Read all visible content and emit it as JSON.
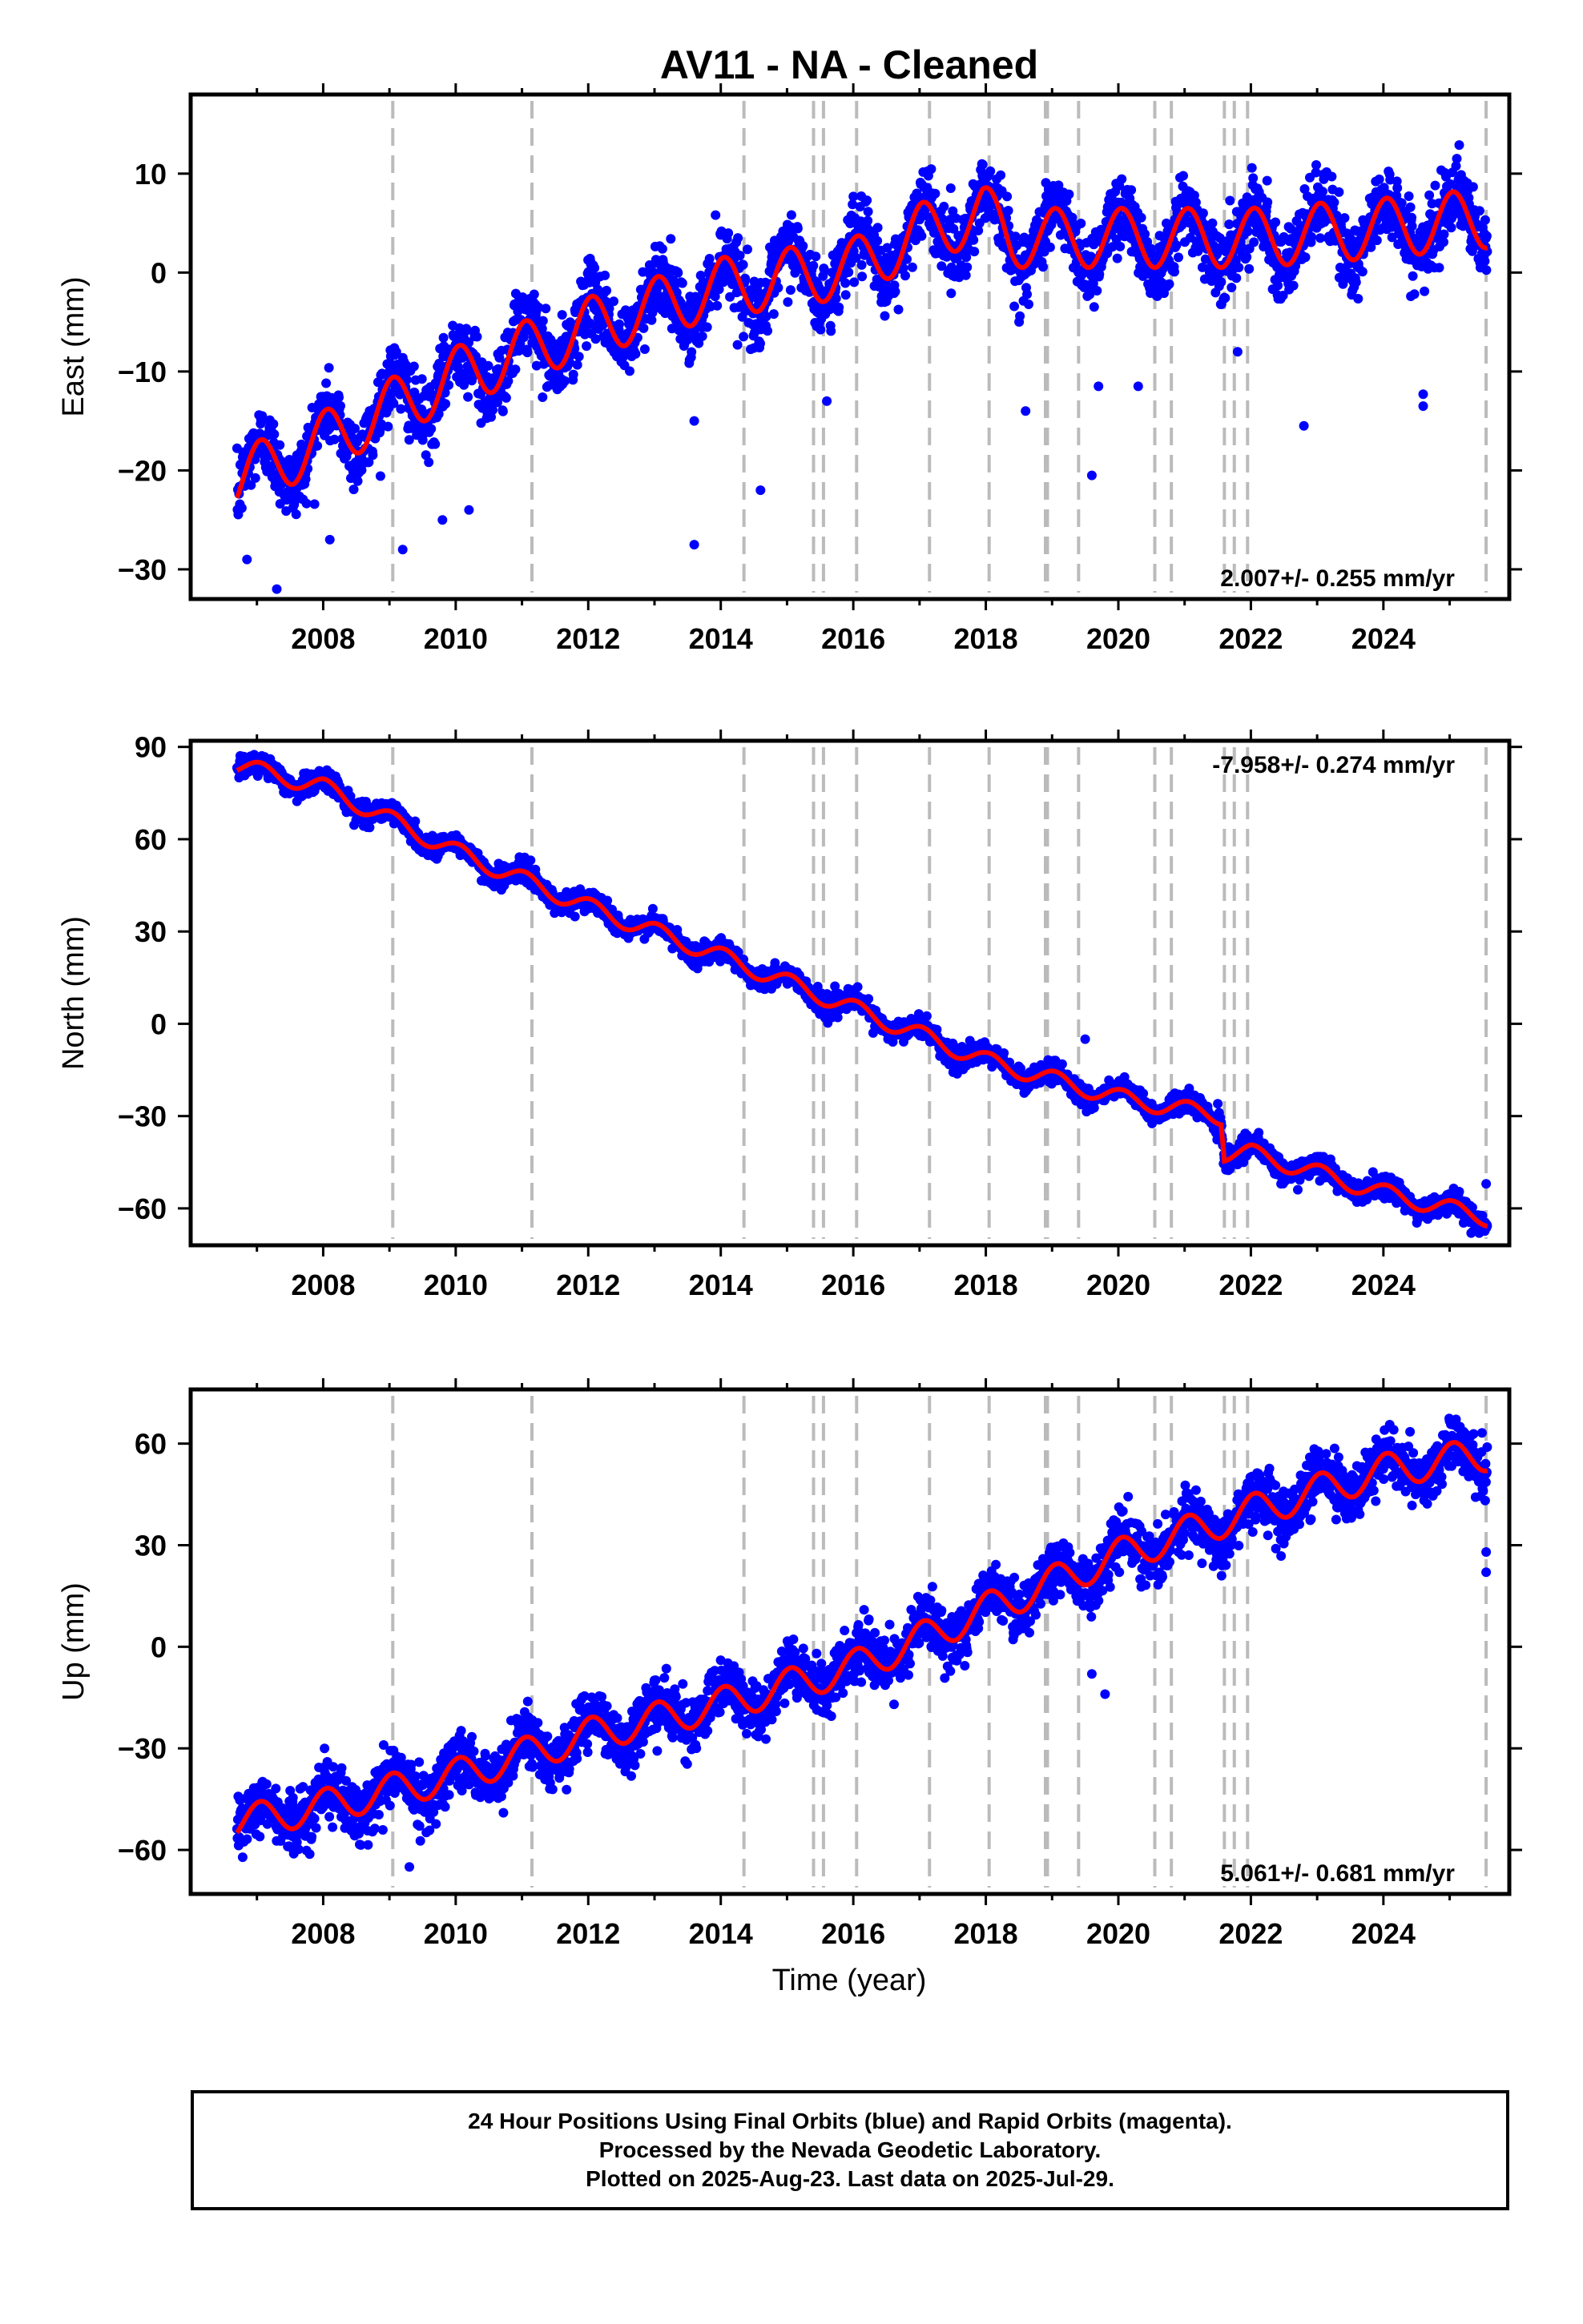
{
  "title": "AV11  - NA - Cleaned",
  "colors": {
    "data": "#0000ff",
    "model": "#ff0000",
    "breaks": "#bbbbbb",
    "frame": "#000000"
  },
  "x_axis_label": "Time (year)",
  "footer": {
    "line1": "24 Hour Positions Using Final Orbits (blue) and Rapid Orbits (magenta).",
    "line2": "Processed by the Nevada Geodetic Laboratory.",
    "line3": "Plotted on 2025-Aug-23. Last data on 2025-Jul-29."
  },
  "chart_data": [
    {
      "type": "scatter",
      "component": "east",
      "ylabel": "East (mm)",
      "rate_label": "2.007+/- 0.255 mm/yr",
      "rate_position": "bottom-right",
      "xlim": [
        2006.0,
        2025.9
      ],
      "ylim": [
        -33,
        18
      ],
      "x_ticks": [
        2008,
        2010,
        2012,
        2014,
        2016,
        2018,
        2020,
        2022,
        2024
      ],
      "y_ticks": [
        -30,
        -20,
        -10,
        0,
        10
      ],
      "data_start": 2006.7,
      "data_end": 2025.57,
      "model_knots": {
        "x": [
          2006.7,
          2008.0,
          2010.0,
          2012.0,
          2014.0,
          2016.0,
          2017.0,
          2017.95,
          2018.4,
          2020.0,
          2022.0,
          2024.0,
          2025.57
        ],
        "y": [
          -21,
          -17,
          -10.5,
          -5.5,
          -1.5,
          0.5,
          4.0,
          6.0,
          3.5,
          3.5,
          3.5,
          4.5,
          5.5
        ]
      },
      "seasonal_amplitude": 3.0,
      "scatter_sd": 1.8,
      "outliers": {
        "x": [
          2006.85,
          2007.3,
          2009.2,
          2009.8,
          2013.6,
          2013.6,
          2014.6,
          2015.6,
          2018.6,
          2019.6,
          2019.7,
          2020.3,
          2022.8,
          2024.6,
          2024.6,
          2021.8,
          2008.1,
          2010.2
        ],
        "y": [
          -29,
          -32,
          -28,
          -25,
          -27.5,
          -15,
          -22,
          -13,
          -14,
          -20.5,
          -11.5,
          -11.5,
          -15.5,
          -12.3,
          -13.5,
          -8,
          -27,
          -24
        ]
      }
    },
    {
      "type": "scatter",
      "component": "north",
      "ylabel": "North (mm)",
      "rate_label": "-7.958+/- 0.274 mm/yr",
      "rate_position": "top-right",
      "xlim": [
        2006.0,
        2025.9
      ],
      "ylim": [
        -72,
        92
      ],
      "x_ticks": [
        2008,
        2010,
        2012,
        2014,
        2016,
        2018,
        2020,
        2022,
        2024
      ],
      "y_ticks": [
        -60,
        -30,
        0,
        30,
        60,
        90
      ],
      "data_start": 2006.7,
      "data_end": 2025.57,
      "model_knots": {
        "x": [
          2006.7,
          2008.0,
          2010.0,
          2012.0,
          2014.0,
          2016.0,
          2018.0,
          2020.0,
          2021.55,
          2021.6,
          2022.0,
          2024.0,
          2025.57
        ],
        "y": [
          84,
          77,
          56,
          38,
          22,
          5,
          -12,
          -24,
          -30,
          -42,
          -42,
          -55,
          -63
        ]
      },
      "seasonal_amplitude": 2.8,
      "scatter_sd": 1.7,
      "outliers": {
        "x": [
          2016.3,
          2019.5,
          2021.5,
          2025.55
        ],
        "y": [
          -3,
          -5,
          -26,
          -52
        ]
      }
    },
    {
      "type": "scatter",
      "component": "up",
      "ylabel": "Up (mm)",
      "rate_label": "5.061+/- 0.681 mm/yr",
      "rate_position": "bottom-right",
      "xlim": [
        2006.0,
        2025.9
      ],
      "ylim": [
        -73,
        76
      ],
      "x_ticks": [
        2008,
        2010,
        2012,
        2014,
        2016,
        2018,
        2020,
        2022,
        2024
      ],
      "y_ticks": [
        -60,
        -30,
        0,
        30,
        60
      ],
      "data_start": 2006.7,
      "data_end": 2025.57,
      "model_knots": {
        "x": [
          2006.7,
          2008.0,
          2010.0,
          2012.0,
          2014.0,
          2016.0,
          2017.1,
          2018.0,
          2020.0,
          2022.0,
          2024.0,
          2025.57
        ],
        "y": [
          -52,
          -47,
          -38,
          -26,
          -17,
          -6,
          3,
          11,
          27,
          40,
          52,
          57
        ]
      },
      "seasonal_amplitude": 5.0,
      "scatter_sd": 4.0,
      "outliers": {
        "x": [
          2009.3,
          2013.8,
          2019.6,
          2019.8,
          2025.55,
          2025.55
        ],
        "y": [
          -65,
          -13,
          -8,
          -14,
          22,
          28
        ]
      }
    }
  ],
  "break_years": [
    2009.05,
    2011.15,
    2014.35,
    2015.4,
    2015.55,
    2016.05,
    2017.15,
    2018.05,
    2018.9,
    2018.93,
    2019.4,
    2020.55,
    2020.8,
    2021.6,
    2021.75,
    2021.95,
    2025.55
  ]
}
